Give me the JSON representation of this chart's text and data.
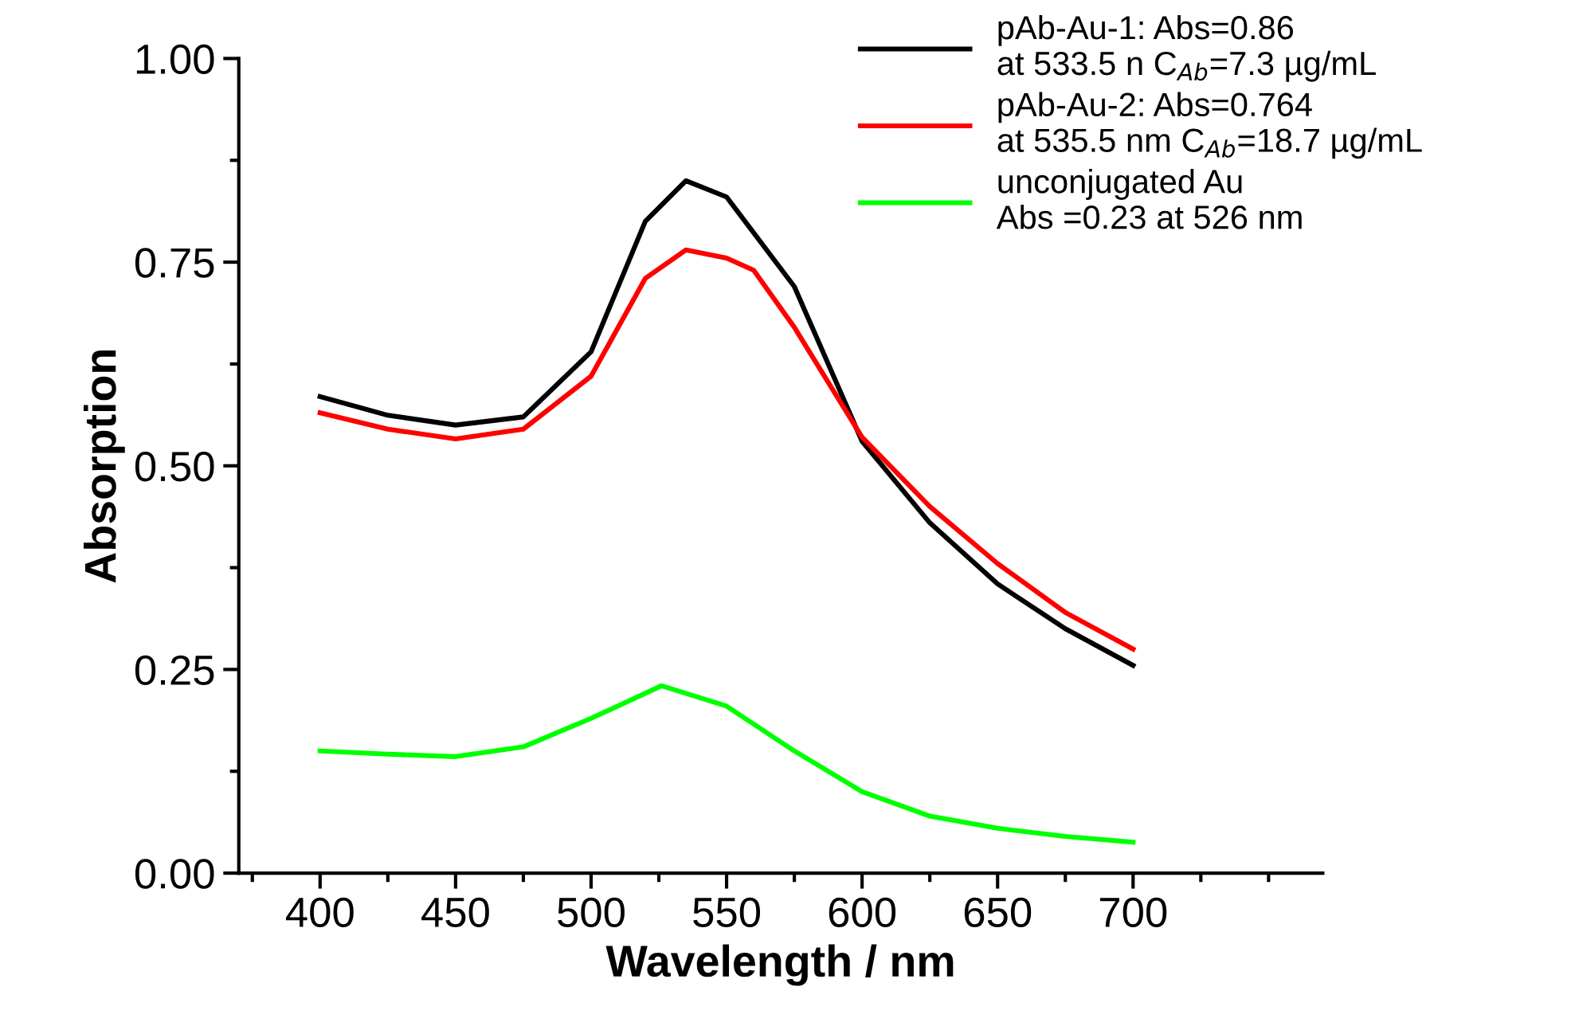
{
  "chart_data": {
    "type": "line",
    "xlabel": "Wavelength / nm",
    "ylabel": "Absorption",
    "xlim": [
      370,
      770
    ],
    "xticks": [
      400,
      450,
      500,
      550,
      600,
      650,
      700
    ],
    "ylim": [
      0,
      1.0
    ],
    "yticks": [
      {
        "value": 0,
        "label": "0.00"
      },
      {
        "value": 0.25,
        "label": "0.25"
      },
      {
        "value": 0.5,
        "label": "0.50"
      },
      {
        "value": 0.75,
        "label": "0.75"
      },
      {
        "value": 1.0,
        "label": "1.00"
      }
    ],
    "grid": false,
    "legend": "top right",
    "marker": "none",
    "line_style": "solid",
    "series": [
      {
        "name": "pAb-Au-1: Abs=0.86\nat 533.5 n C$_{Ab}$=7.3 µg/mL",
        "color": "#000000",
        "x": [
          400,
          425,
          450,
          475,
          500,
          520,
          535,
          550,
          575,
          600,
          625,
          650,
          675,
          700
        ],
        "values": [
          0.585,
          0.562,
          0.55,
          0.56,
          0.64,
          0.8,
          0.85,
          0.83,
          0.72,
          0.53,
          0.43,
          0.355,
          0.3,
          0.255
        ]
      },
      {
        "name": "pAb-Au-2: Abs=0.764\nat 535.5 nm C$_{Ab}$=18.7 µg/mL",
        "color": "#ff0000",
        "x": [
          400,
          425,
          450,
          475,
          500,
          520,
          535,
          550,
          560,
          575,
          600,
          625,
          650,
          675,
          700
        ],
        "values": [
          0.565,
          0.545,
          0.533,
          0.545,
          0.61,
          0.73,
          0.765,
          0.755,
          0.74,
          0.67,
          0.535,
          0.45,
          0.38,
          0.32,
          0.275
        ]
      },
      {
        "name": "unconjugated Au\nAbs =0.23 at 526 nm",
        "color": "#00ff00",
        "x": [
          400,
          425,
          450,
          475,
          500,
          526,
          550,
          575,
          600,
          625,
          650,
          675,
          700
        ],
        "values": [
          0.15,
          0.146,
          0.143,
          0.155,
          0.19,
          0.23,
          0.205,
          0.15,
          0.1,
          0.07,
          0.055,
          0.045,
          0.038
        ]
      }
    ]
  }
}
